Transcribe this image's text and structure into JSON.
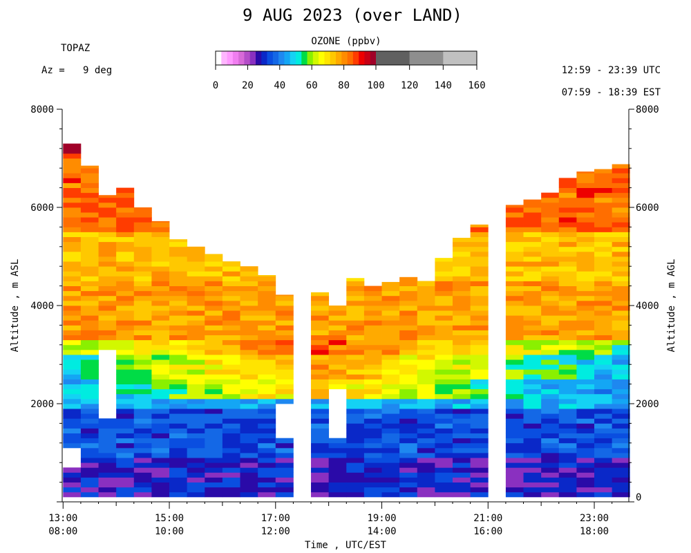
{
  "header": {
    "title": "9 AUG 2023 (over LAND)",
    "instrument": "TOPAZ",
    "az_label": "Az =",
    "az_value": "9 deg",
    "time_utc": "12:59 - 23:39 UTC",
    "time_est": "07:59 - 18:39 EST"
  },
  "colorbar": {
    "title": "OZONE (ppbv)",
    "tick_labels": [
      "0",
      "20",
      "40",
      "60",
      "80",
      "100",
      "120",
      "140",
      "160"
    ],
    "colors": [
      "#ffffff",
      "#ffb6ff",
      "#ff99ff",
      "#f07ef0",
      "#d86ad8",
      "#b44ec8",
      "#8a30c0",
      "#2a0aa8",
      "#0a28c8",
      "#0a4ee0",
      "#1468e6",
      "#1e88f0",
      "#14a6f4",
      "#14d2f4",
      "#00ece0",
      "#00dc46",
      "#8af000",
      "#d2f800",
      "#ffff00",
      "#ffe400",
      "#ffc800",
      "#ffaa00",
      "#ff8c00",
      "#ff6e00",
      "#ff3c00",
      "#ee0000",
      "#c80014",
      "#a00028",
      "#606060",
      "#8e8e8e",
      "#c0c0c0"
    ]
  },
  "chart_data": {
    "type": "heatmap",
    "title": "9 AUG 2023 (over LAND)",
    "xlabel": "Time , UTC/EST",
    "ylabel_left": "Altitude , m ASL",
    "ylabel_right": "Altitude , m AGL",
    "x_range": [
      "12:59",
      "23:39"
    ],
    "y_range_asl": [
      0,
      8000
    ],
    "y_ticks_asl": [
      "2000",
      "4000",
      "6000",
      "8000"
    ],
    "y_ticks_agl": [
      "0",
      "2000",
      "4000",
      "6000",
      "8000"
    ],
    "agl_offset_m": 0,
    "x_tick_labels": [
      {
        "utc": "13:00",
        "est": "08:00"
      },
      {
        "utc": "15:00",
        "est": "10:00"
      },
      {
        "utc": "17:00",
        "est": "12:00"
      },
      {
        "utc": "19:00",
        "est": "14:00"
      },
      {
        "utc": "21:00",
        "est": "16:00"
      },
      {
        "utc": "23:00",
        "est": "18:00"
      }
    ],
    "profile_start_time_utc": "13:00",
    "profile_interval_minutes": 20,
    "profile_bottom_m": 100,
    "profile_top_m": [
      7300,
      6850,
      6250,
      6400,
      6000,
      5720,
      5350,
      5200,
      5050,
      4900,
      4800,
      4620,
      4220,
      null,
      4270,
      4000,
      4560,
      4400,
      4480,
      4580,
      4500,
      4970,
      5380,
      5650,
      null,
      6050,
      6160,
      6300,
      6600,
      6730,
      6780,
      6880
    ],
    "gaps": [
      {
        "profile": 0,
        "from_m": 700,
        "to_m": 1030
      },
      {
        "profile": 2,
        "from_m": 1680,
        "to_m": 3080
      },
      {
        "profile": 12,
        "from_m": 1300,
        "to_m": 1980
      },
      {
        "profile": 15,
        "from_m": 1300,
        "to_m": 2300
      }
    ],
    "ozone_profile_bands_ppbv": [
      {
        "below_m": 900,
        "ppbv": 28
      },
      {
        "below_m": 1900,
        "ppbv": 34
      },
      {
        "below_m": 2500,
        "ppbv": 46
      },
      {
        "below_m": 3000,
        "ppbv": 52
      },
      {
        "below_m": 3300,
        "ppbv": 60
      },
      {
        "below_m": 4500,
        "ppbv": 78
      },
      {
        "below_m": 5500,
        "ppbv": 74
      },
      {
        "below_m": 7000,
        "ppbv": 84
      },
      {
        "below_m": 8000,
        "ppbv": 92
      }
    ]
  }
}
